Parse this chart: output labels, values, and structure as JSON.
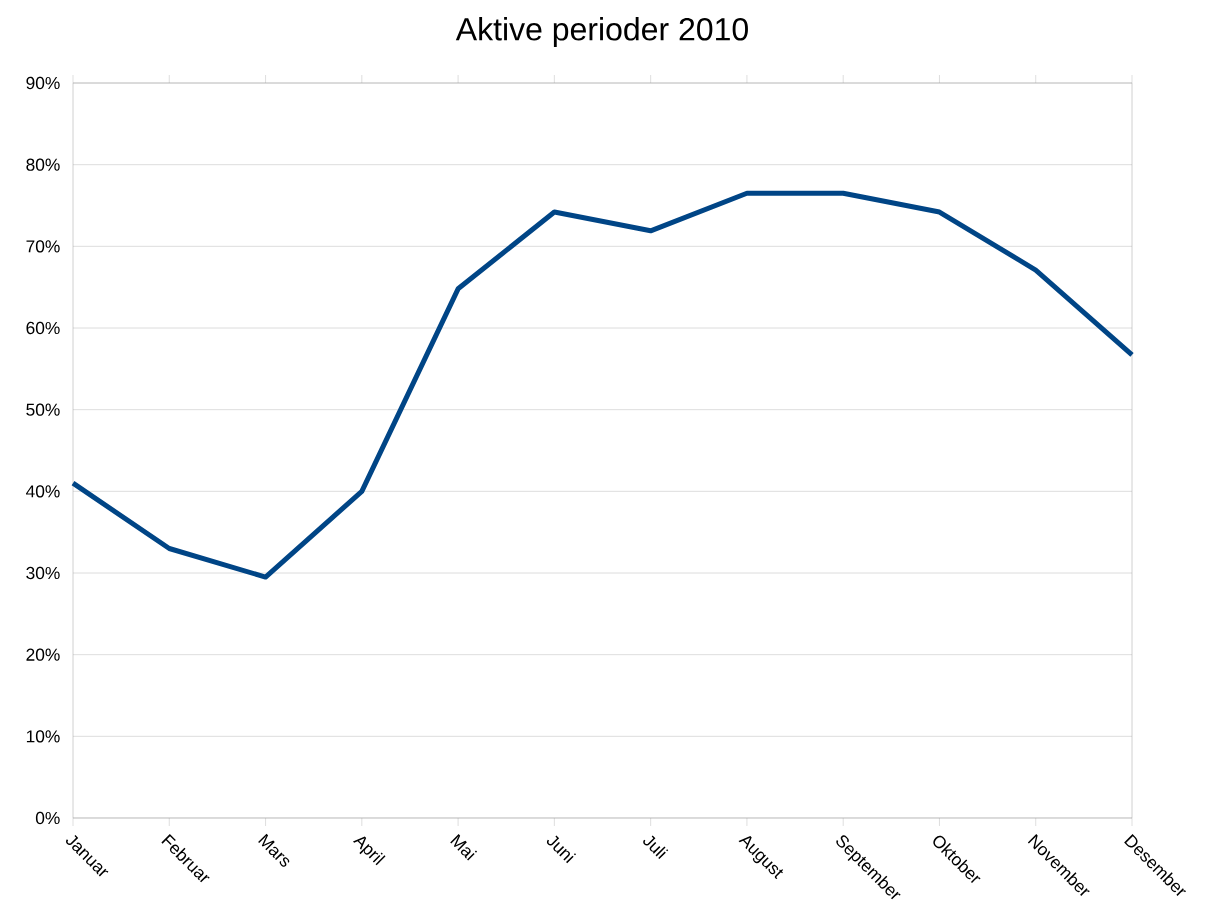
{
  "chart_data": {
    "type": "line",
    "title": "Aktive perioder 2010",
    "categories": [
      "Januar",
      "Februar",
      "Mars",
      "April",
      "Mai",
      "Juni",
      "Juli",
      "August",
      "September",
      "Oktober",
      "November",
      "Desember"
    ],
    "series": [
      {
        "color": "#004586",
        "values": [
          41,
          33,
          29.5,
          40,
          64.8,
          74.2,
          71.9,
          76.5,
          76.5,
          74.2,
          67.1,
          56.7
        ]
      }
    ],
    "ylim": [
      0,
      90
    ],
    "yticks": [
      {
        "value": 0,
        "label": "0%"
      },
      {
        "value": 10,
        "label": "10%"
      },
      {
        "value": 20,
        "label": "20%"
      },
      {
        "value": 30,
        "label": "30%"
      },
      {
        "value": 40,
        "label": "40%"
      },
      {
        "value": 50,
        "label": "50%"
      },
      {
        "value": 60,
        "label": "60%"
      },
      {
        "value": 70,
        "label": "70%"
      },
      {
        "value": 80,
        "label": "80%"
      },
      {
        "value": 90,
        "label": "90%"
      }
    ],
    "grid": "y",
    "marker": "none",
    "line_style": "solid"
  }
}
